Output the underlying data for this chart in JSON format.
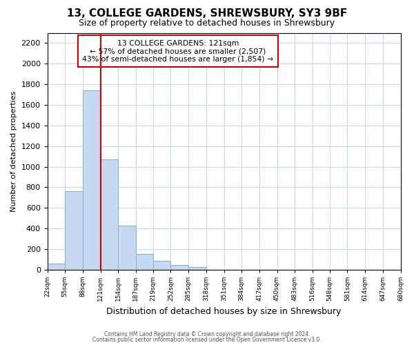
{
  "title": "13, COLLEGE GARDENS, SHREWSBURY, SY3 9BF",
  "subtitle": "Size of property relative to detached houses in Shrewsbury",
  "xlabel": "Distribution of detached houses by size in Shrewsbury",
  "ylabel": "Number of detached properties",
  "bar_edges": [
    22,
    55,
    88,
    121,
    154,
    187,
    219,
    252,
    285,
    318,
    351,
    384,
    417,
    450,
    483,
    516,
    548,
    581,
    614,
    647,
    680
  ],
  "bar_heights": [
    60,
    760,
    1740,
    1070,
    430,
    155,
    85,
    45,
    25,
    0,
    0,
    0,
    0,
    0,
    0,
    0,
    0,
    0,
    0,
    0
  ],
  "bar_color": "#c6d9f0",
  "bar_edgecolor": "#7bafd4",
  "vline_x": 121,
  "vline_color": "#cc0000",
  "annotation_title": "13 COLLEGE GARDENS: 121sqm",
  "annotation_line1": "← 57% of detached houses are smaller (2,507)",
  "annotation_line2": "43% of semi-detached houses are larger (1,854) →",
  "box_edgecolor": "#cc0000",
  "ylim": [
    0,
    2300
  ],
  "yticks": [
    0,
    200,
    400,
    600,
    800,
    1000,
    1200,
    1400,
    1600,
    1800,
    2000,
    2200
  ],
  "xtick_labels": [
    "22sqm",
    "55sqm",
    "88sqm",
    "121sqm",
    "154sqm",
    "187sqm",
    "219sqm",
    "252sqm",
    "285sqm",
    "318sqm",
    "351sqm",
    "384sqm",
    "417sqm",
    "450sqm",
    "483sqm",
    "516sqm",
    "548sqm",
    "581sqm",
    "614sqm",
    "647sqm",
    "680sqm"
  ],
  "footer1": "Contains HM Land Registry data © Crown copyright and database right 2024.",
  "footer2": "Contains public sector information licensed under the Open Government Licence v3.0.",
  "background_color": "#ffffff",
  "grid_color": "#c8d8e8"
}
